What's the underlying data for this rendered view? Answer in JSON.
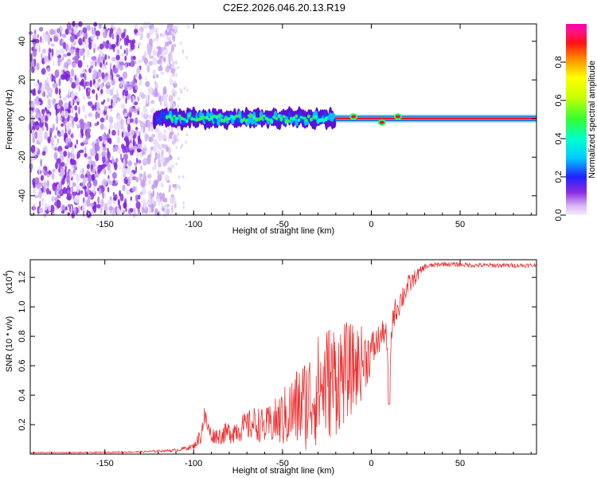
{
  "title": "C2E2.2026.046.20.13.R19",
  "chart_data": [
    {
      "type": "heatmap",
      "xlabel": "Height of straight line (km)",
      "ylabel": "Frequency (Hz)",
      "xlim": [
        -192,
        93
      ],
      "ylim": [
        -50,
        49
      ],
      "xticks": [
        -150,
        -100,
        -50,
        0,
        50
      ],
      "xtick_labels": [
        "-150",
        "-100",
        "-50",
        "0",
        "50"
      ],
      "yticks": [
        -40,
        -20,
        0,
        20,
        40
      ],
      "ytick_labels": [
        "-40",
        "-20",
        "0",
        "20",
        "40"
      ],
      "description_regions": [
        {
          "x_range": [
            -192,
            -110
          ],
          "pattern": "scattered low-amplitude noise across all frequencies"
        },
        {
          "x_range": [
            -122,
            -20
          ],
          "pattern": "noisy band near 0 Hz (about -8 to +6 Hz)"
        },
        {
          "x_range": [
            -20,
            93
          ],
          "pattern": "narrow high-amplitude band at 0 Hz"
        }
      ],
      "colorbar": {
        "label": "Normalized spectral amplitude",
        "range": [
          0,
          1
        ],
        "ticks": [
          0.0,
          0.2,
          0.4,
          0.6,
          0.8
        ],
        "tick_labels": [
          "0.0",
          "0.2",
          "0.4",
          "0.6",
          "0.8"
        ]
      }
    },
    {
      "type": "line",
      "xlabel": "Height of straight line (km)",
      "ylabel": "SNR (10 * v/v)",
      "multiplier_label": "(x10",
      "multiplier_exp": "4",
      "multiplier_close": ")",
      "xlim": [
        -192,
        93
      ],
      "ylim": [
        0,
        1.32
      ],
      "xticks": [
        -150,
        -100,
        -50,
        0,
        50
      ],
      "xtick_labels": [
        "-150",
        "-100",
        "-50",
        "0",
        "50"
      ],
      "yticks": [
        0.2,
        0.4,
        0.6,
        0.8,
        1.0,
        1.2
      ],
      "ytick_labels": [
        "0.2",
        "0.4",
        "0.6",
        "0.8",
        "1.0",
        "1.2"
      ],
      "series": [
        {
          "name": "SNR",
          "color": "#ee3333",
          "x": [
            -192,
            -160,
            -130,
            -110,
            -100,
            -96,
            -94,
            -92,
            -90,
            -85,
            -80,
            -75,
            -70,
            -65,
            -60,
            -55,
            -50,
            -45,
            -40,
            -35,
            -30,
            -25,
            -20,
            -15,
            -10,
            -5,
            0,
            5,
            8,
            10,
            12,
            15,
            20,
            25,
            30,
            40,
            60,
            93
          ],
          "y": [
            0.01,
            0.01,
            0.015,
            0.025,
            0.05,
            0.12,
            0.25,
            0.18,
            0.12,
            0.12,
            0.14,
            0.16,
            0.18,
            0.2,
            0.17,
            0.2,
            0.22,
            0.26,
            0.3,
            0.33,
            0.4,
            0.45,
            0.48,
            0.52,
            0.55,
            0.6,
            0.68,
            0.78,
            0.84,
            0.5,
            0.92,
            1.0,
            1.12,
            1.2,
            1.27,
            1.29,
            1.28,
            1.28
          ],
          "noise_amplitude": [
            0.003,
            0.004,
            0.005,
            0.01,
            0.02,
            0.06,
            0.08,
            0.06,
            0.05,
            0.06,
            0.08,
            0.09,
            0.1,
            0.12,
            0.12,
            0.15,
            0.2,
            0.25,
            0.3,
            0.35,
            0.38,
            0.4,
            0.4,
            0.35,
            0.3,
            0.25,
            0.15,
            0.1,
            0.08,
            0.05,
            0.08,
            0.1,
            0.08,
            0.05,
            0.02,
            0.015,
            0.015,
            0.015
          ]
        }
      ]
    }
  ]
}
